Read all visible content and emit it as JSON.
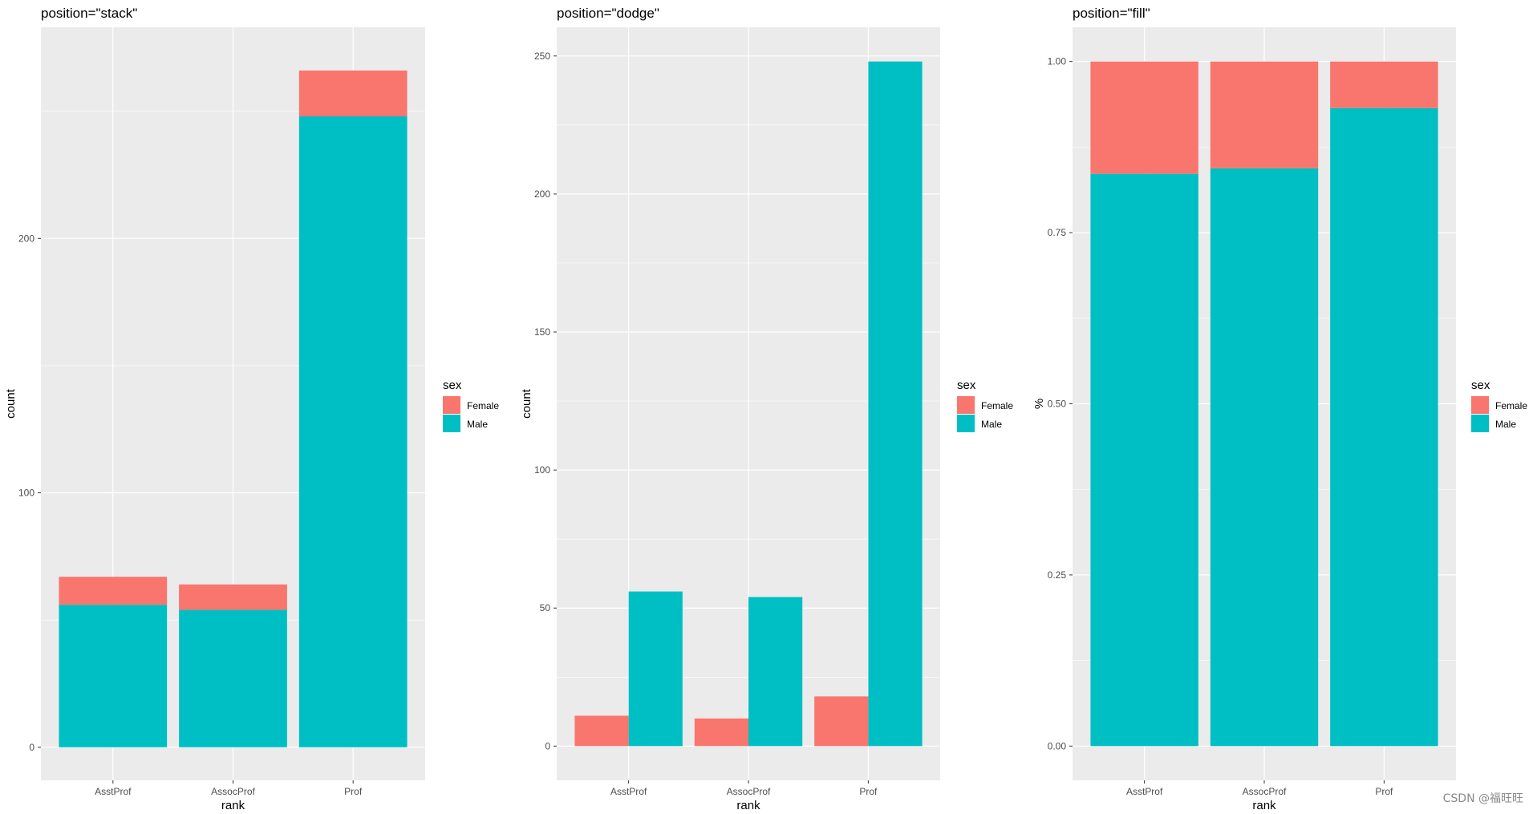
{
  "colors": {
    "female": "#F8766D",
    "male": "#00BFC4",
    "panel": "#EBEBEB",
    "grid": "#FFFFFF"
  },
  "watermark": "CSDN @福旺旺",
  "chart_data": [
    {
      "type": "bar",
      "position": "stack",
      "title": "position=\"stack\"",
      "xlabel": "rank",
      "ylabel": "count",
      "categories": [
        "AsstProf",
        "AssocProf",
        "Prof"
      ],
      "series": [
        {
          "name": "Male",
          "values": [
            56,
            54,
            248
          ]
        },
        {
          "name": "Female",
          "values": [
            11,
            10,
            18
          ]
        }
      ],
      "ylim": [
        -13,
        283
      ],
      "yticks": [
        0,
        100,
        200
      ],
      "ytick_labels": [
        "0",
        "100",
        "200"
      ],
      "legend": {
        "title": "sex",
        "entries": [
          "Female",
          "Male"
        ],
        "placement": "right"
      }
    },
    {
      "type": "bar",
      "position": "dodge",
      "title": "position=\"dodge\"",
      "xlabel": "rank",
      "ylabel": "count",
      "categories": [
        "AsstProf",
        "AssocProf",
        "Prof"
      ],
      "series": [
        {
          "name": "Female",
          "values": [
            11,
            10,
            18
          ]
        },
        {
          "name": "Male",
          "values": [
            56,
            54,
            248
          ]
        }
      ],
      "ylim": [
        -12.4,
        260.4
      ],
      "yticks": [
        0,
        50,
        100,
        150,
        200,
        250
      ],
      "ytick_labels": [
        "0",
        "50",
        "100",
        "150",
        "200",
        "250"
      ],
      "legend": {
        "title": "sex",
        "entries": [
          "Female",
          "Male"
        ],
        "placement": "right"
      }
    },
    {
      "type": "bar",
      "position": "fill",
      "title": "position=\"fill\"",
      "xlabel": "rank",
      "ylabel": "%",
      "categories": [
        "AsstProf",
        "AssocProf",
        "Prof"
      ],
      "series": [
        {
          "name": "Male",
          "values": [
            0.836,
            0.844,
            0.932
          ]
        },
        {
          "name": "Female",
          "values": [
            0.164,
            0.156,
            0.068
          ]
        }
      ],
      "ylim": [
        -0.05,
        1.05
      ],
      "yticks": [
        0,
        0.25,
        0.5,
        0.75,
        1.0
      ],
      "ytick_labels": [
        "0.00",
        "0.25",
        "0.50",
        "0.75",
        "1.00"
      ],
      "legend": {
        "title": "sex",
        "entries": [
          "Female",
          "Male"
        ],
        "placement": "right"
      }
    }
  ]
}
